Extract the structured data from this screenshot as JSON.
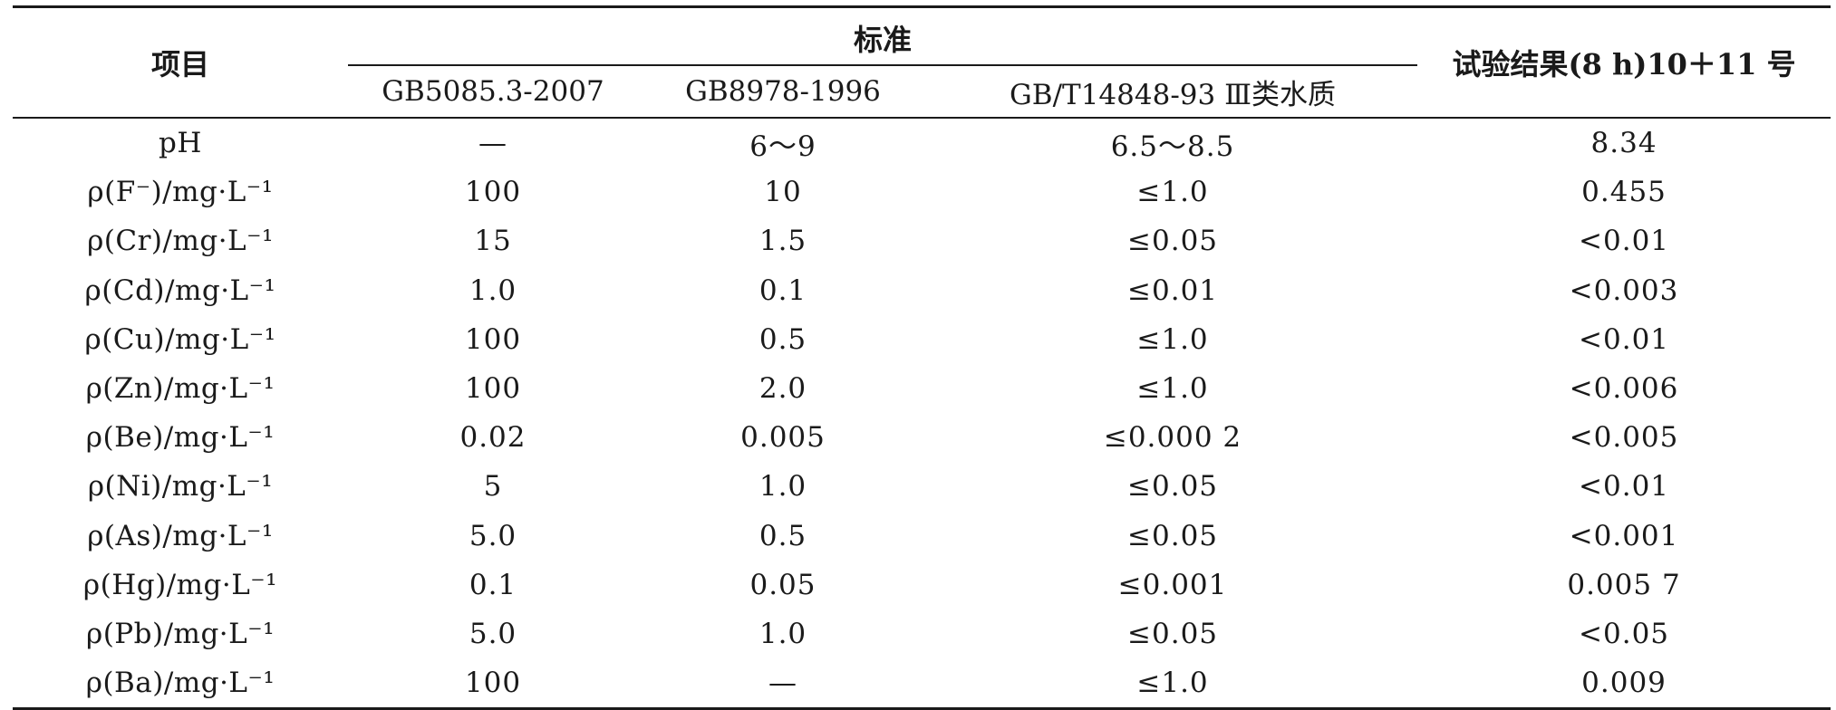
{
  "table": {
    "header": {
      "item": "项目",
      "standard_group": "标准",
      "result": "试验结果(8 h)10＋11 号",
      "standards": [
        "GB5085.3-2007",
        "GB8978-1996",
        "GB/T14848-93 Ⅲ类水质"
      ]
    },
    "rows": [
      {
        "item": "pH",
        "gb5085": "—",
        "gb8978": "6～9",
        "gbt14848": "6.5～8.5",
        "result": "8.34"
      },
      {
        "item": "ρ(F⁻)/mg·L⁻¹",
        "gb5085": "100",
        "gb8978": "10",
        "gbt14848": "≤1.0",
        "result": "0.455"
      },
      {
        "item": "ρ(Cr)/mg·L⁻¹",
        "gb5085": "15",
        "gb8978": "1.5",
        "gbt14848": "≤0.05",
        "result": "<0.01"
      },
      {
        "item": "ρ(Cd)/mg·L⁻¹",
        "gb5085": "1.0",
        "gb8978": "0.1",
        "gbt14848": "≤0.01",
        "result": "<0.003"
      },
      {
        "item": "ρ(Cu)/mg·L⁻¹",
        "gb5085": "100",
        "gb8978": "0.5",
        "gbt14848": "≤1.0",
        "result": "<0.01"
      },
      {
        "item": "ρ(Zn)/mg·L⁻¹",
        "gb5085": "100",
        "gb8978": "2.0",
        "gbt14848": "≤1.0",
        "result": "<0.006"
      },
      {
        "item": "ρ(Be)/mg·L⁻¹",
        "gb5085": "0.02",
        "gb8978": "0.005",
        "gbt14848": "≤0.000 2",
        "result": "<0.005"
      },
      {
        "item": "ρ(Ni)/mg·L⁻¹",
        "gb5085": "5",
        "gb8978": "1.0",
        "gbt14848": "≤0.05",
        "result": "<0.01"
      },
      {
        "item": "ρ(As)/mg·L⁻¹",
        "gb5085": "5.0",
        "gb8978": "0.5",
        "gbt14848": "≤0.05",
        "result": "<0.001"
      },
      {
        "item": "ρ(Hg)/mg·L⁻¹",
        "gb5085": "0.1",
        "gb8978": "0.05",
        "gbt14848": "≤0.001",
        "result": "0.005 7"
      },
      {
        "item": "ρ(Pb)/mg·L⁻¹",
        "gb5085": "5.0",
        "gb8978": "1.0",
        "gbt14848": "≤0.05",
        "result": "<0.05"
      },
      {
        "item": "ρ(Ba)/mg·L⁻¹",
        "gb5085": "100",
        "gb8978": "—",
        "gbt14848": "≤1.0",
        "result": "0.009"
      }
    ]
  }
}
